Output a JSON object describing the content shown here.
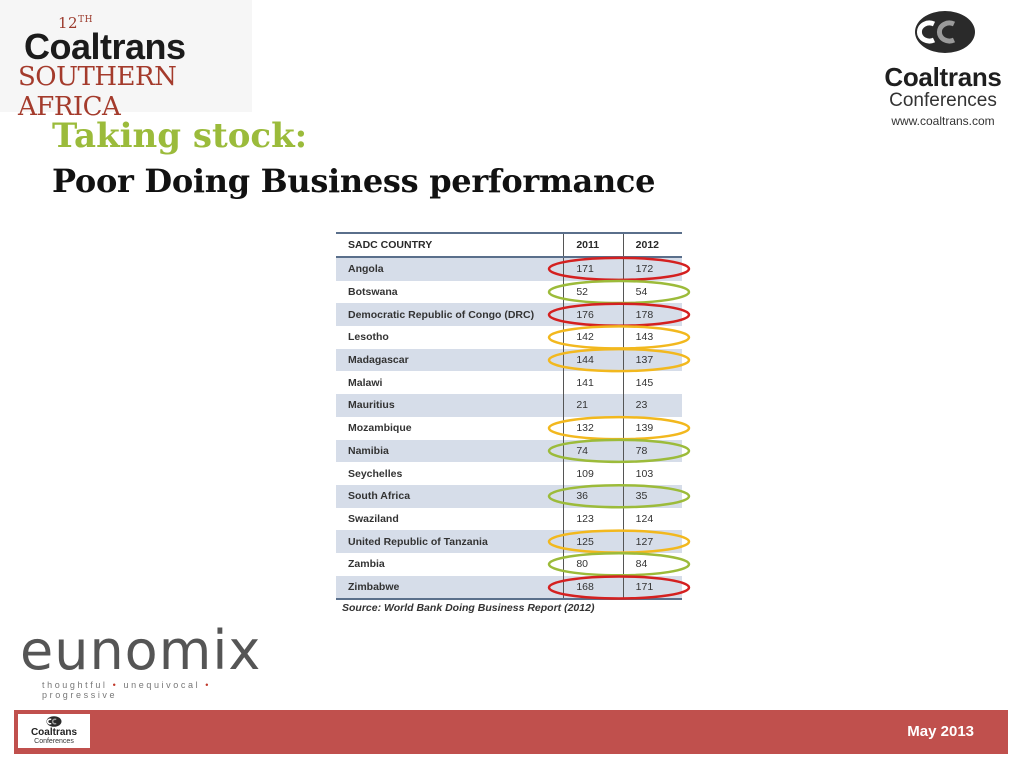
{
  "event_logo": {
    "edition_num": "12",
    "edition_suffix": "TH",
    "brand": "Coaltrans",
    "region": "SOUTHERN AFRICA"
  },
  "company_logo": {
    "icon": "coaltrans-cc-icon",
    "name": "Coaltrans",
    "sub": "Conferences",
    "url": "www.coaltrans.com"
  },
  "title": "Taking stock:",
  "subtitle": "Poor Doing Business performance",
  "table": {
    "headers": [
      "SADC COUNTRY",
      "2011",
      "2012"
    ],
    "rows": [
      {
        "country": "Angola",
        "y2011": "171",
        "y2012": "172",
        "mark": "red"
      },
      {
        "country": "Botswana",
        "y2011": "52",
        "y2012": "54",
        "mark": "green"
      },
      {
        "country": "Democratic Republic of Congo (DRC)",
        "y2011": "176",
        "y2012": "178",
        "mark": "red"
      },
      {
        "country": "Lesotho",
        "y2011": "142",
        "y2012": "143",
        "mark": "orange"
      },
      {
        "country": "Madagascar",
        "y2011": "144",
        "y2012": "137",
        "mark": "orange"
      },
      {
        "country": "Malawi",
        "y2011": "141",
        "y2012": "145",
        "mark": ""
      },
      {
        "country": "Mauritius",
        "y2011": "21",
        "y2012": "23",
        "mark": ""
      },
      {
        "country": "Mozambique",
        "y2011": "132",
        "y2012": "139",
        "mark": "orange"
      },
      {
        "country": "Namibia",
        "y2011": "74",
        "y2012": "78",
        "mark": "green"
      },
      {
        "country": "Seychelles",
        "y2011": "109",
        "y2012": "103",
        "mark": ""
      },
      {
        "country": "South Africa",
        "y2011": "36",
        "y2012": "35",
        "mark": "green"
      },
      {
        "country": "Swaziland",
        "y2011": "123",
        "y2012": "124",
        "mark": ""
      },
      {
        "country": "United Republic of Tanzania",
        "y2011": "125",
        "y2012": "127",
        "mark": "orange"
      },
      {
        "country": "Zambia",
        "y2011": "80",
        "y2012": "84",
        "mark": "green"
      },
      {
        "country": "Zimbabwe",
        "y2011": "168",
        "y2012": "171",
        "mark": "red"
      }
    ],
    "source": "Source: World Bank Doing Business Report (2012)"
  },
  "colors": {
    "red": "#d42020",
    "orange": "#f2b81e",
    "green": "#9cbb3a",
    "title_green": "#9bbb3b",
    "footer": "#c0504d",
    "shade": "#d6dde9"
  },
  "eunomix": {
    "word": "eunomix",
    "tag_parts": [
      "thoughtful",
      "unequivocal",
      "progressive"
    ],
    "separator": "•"
  },
  "footer": {
    "mini_name": "Coaltrans",
    "mini_sub": "Conferences",
    "date": "May 2013"
  }
}
